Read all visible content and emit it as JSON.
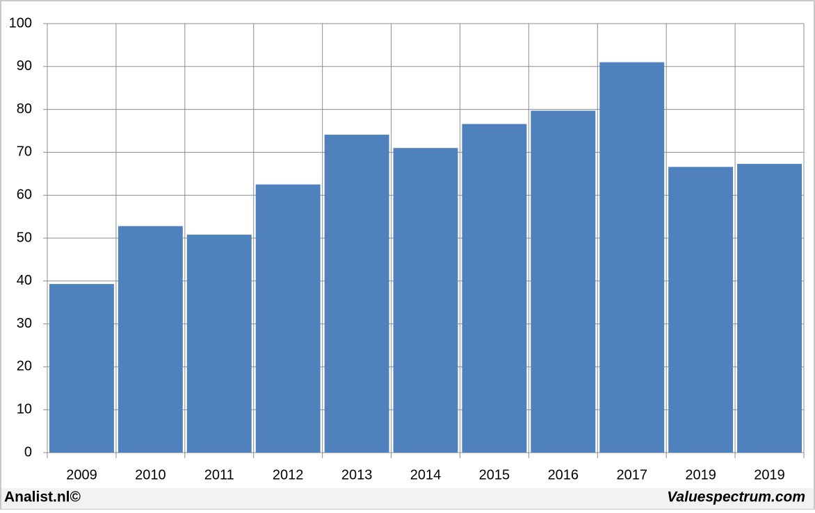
{
  "chart_data": {
    "type": "bar",
    "categories": [
      "2009",
      "2010",
      "2011",
      "2012",
      "2013",
      "2014",
      "2015",
      "2016",
      "2017",
      "2019",
      "2019"
    ],
    "values": [
      39.3,
      52.8,
      50.8,
      62.5,
      74.1,
      71.0,
      76.6,
      79.7,
      91.0,
      66.6,
      67.3
    ],
    "color": "#4f81bd",
    "ylim": [
      0,
      100
    ],
    "yticks": [
      0,
      10,
      20,
      30,
      40,
      50,
      60,
      70,
      80,
      90,
      100
    ],
    "grid": true
  },
  "footer": {
    "left": "Analist.nl©",
    "right": "Valuespectrum.com"
  }
}
